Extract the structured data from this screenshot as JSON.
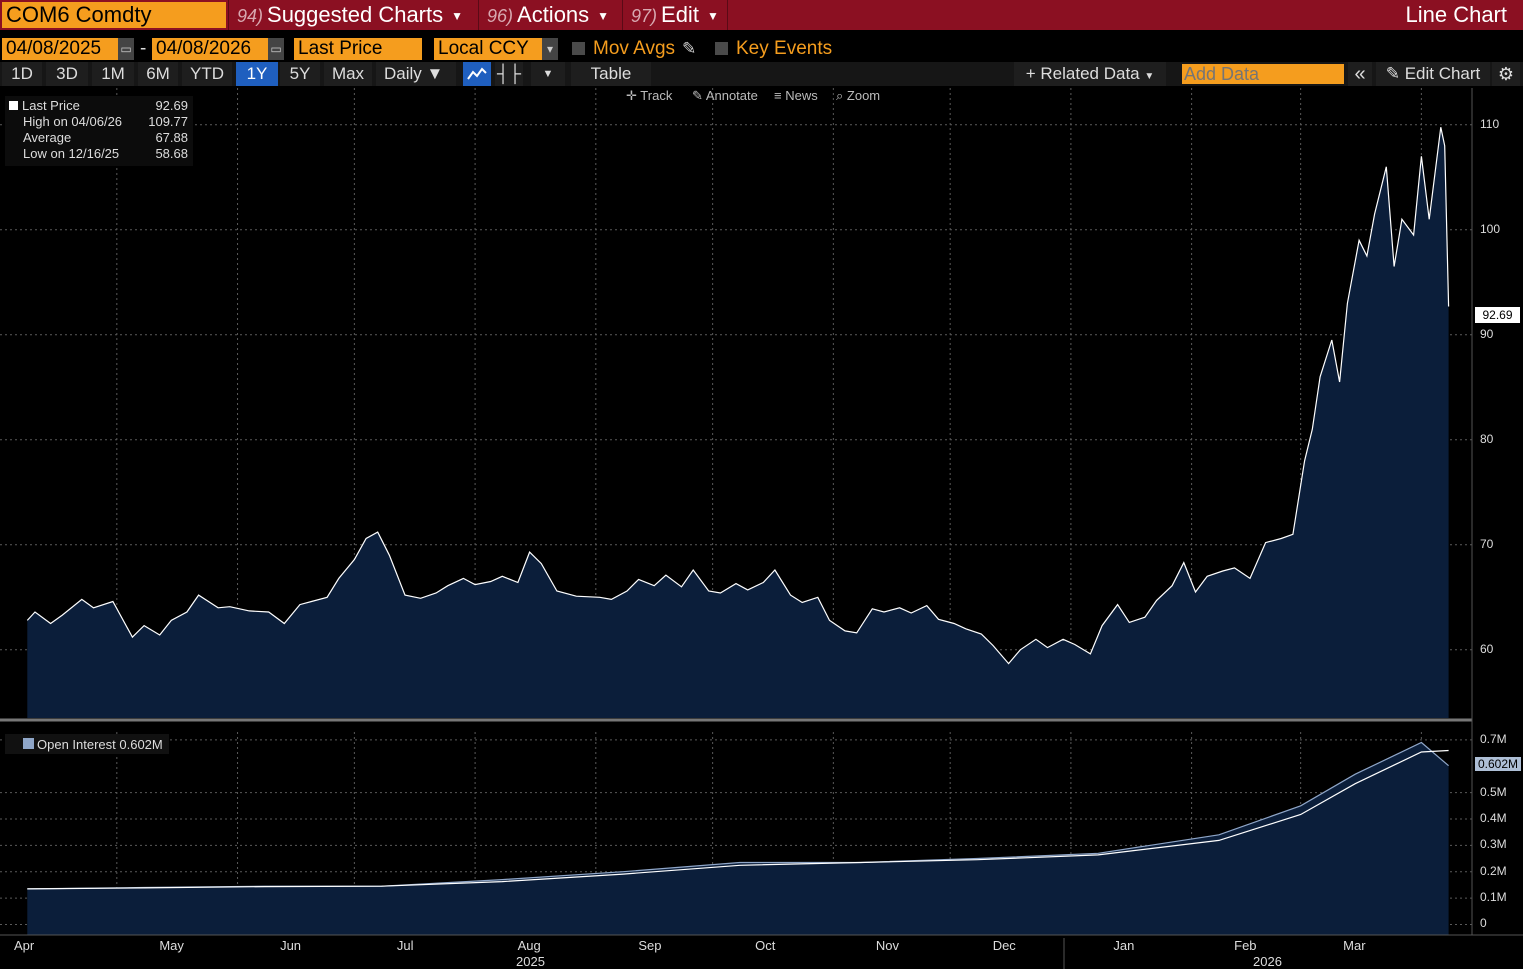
{
  "header": {
    "ticker": "COM6 Comdty",
    "menus": [
      {
        "num": "94)",
        "label": "Suggested Charts"
      },
      {
        "num": "96)",
        "label": "Actions"
      },
      {
        "num": "97)",
        "label": "Edit"
      }
    ],
    "chart_type": "Line Chart"
  },
  "controls": {
    "start_date": "04/08/2025",
    "end_date": "04/08/2026",
    "field": "Last Price",
    "currency": "Local CCY",
    "mov_avgs": "Mov Avgs",
    "key_events": "Key Events"
  },
  "toolbar": {
    "periods": [
      "1D",
      "3D",
      "1M",
      "6M",
      "YTD",
      "1Y",
      "5Y",
      "Max"
    ],
    "active_period": "1Y",
    "frequency": "Daily",
    "table": "Table",
    "related_data": "Related Data",
    "add_data_placeholder": "Add Data",
    "edit_chart": "Edit Chart"
  },
  "subtools": [
    "Track",
    "Annotate",
    "News",
    "Zoom"
  ],
  "legend": {
    "last_price_label": "Last Price",
    "last_price_value": "92.69",
    "high_label": "High on 04/06/26",
    "high_value": "109.77",
    "avg_label": "Average",
    "avg_value": "67.88",
    "low_label": "Low on 12/16/25",
    "low_value": "58.68"
  },
  "oi_legend": "Open Interest 0.602M",
  "tags": {
    "last_price": "92.69",
    "open_interest": "0.602M"
  },
  "colors": {
    "accent": "#f59d1e",
    "header": "#8b1022",
    "area_fill": "#0b1e3a",
    "line": "#ffffff"
  },
  "chart_data": [
    {
      "type": "area",
      "series": [
        {
          "name": "Last Price"
        }
      ],
      "x_labels": [
        "Apr",
        "May",
        "Jun",
        "Jul",
        "Aug",
        "Sep",
        "Oct",
        "Nov",
        "Dec",
        "Jan",
        "Feb",
        "Mar"
      ],
      "year_labels": [
        "2025",
        "2026"
      ],
      "y_ticks": [
        60,
        70,
        80,
        90,
        100,
        110
      ],
      "ylim": [
        53.5,
        113.5
      ],
      "grid": true,
      "points": [
        [
          "2025-04-08",
          62.8
        ],
        [
          "2025-04-10",
          63.6
        ],
        [
          "2025-04-14",
          62.5
        ],
        [
          "2025-04-17",
          63.3
        ],
        [
          "2025-04-22",
          64.8
        ],
        [
          "2025-04-25",
          64.0
        ],
        [
          "2025-04-30",
          64.6
        ],
        [
          "2025-05-05",
          61.2
        ],
        [
          "2025-05-08",
          62.3
        ],
        [
          "2025-05-12",
          61.4
        ],
        [
          "2025-05-15",
          62.8
        ],
        [
          "2025-05-19",
          63.6
        ],
        [
          "2025-05-22",
          65.2
        ],
        [
          "2025-05-27",
          64.0
        ],
        [
          "2025-05-30",
          64.1
        ],
        [
          "2025-06-04",
          63.7
        ],
        [
          "2025-06-09",
          63.6
        ],
        [
          "2025-06-13",
          62.5
        ],
        [
          "2025-06-17",
          64.3
        ],
        [
          "2025-06-20",
          64.6
        ],
        [
          "2025-06-24",
          65.0
        ],
        [
          "2025-06-27",
          66.8
        ],
        [
          "2025-07-01",
          68.6
        ],
        [
          "2025-07-04",
          70.6
        ],
        [
          "2025-07-07",
          71.2
        ],
        [
          "2025-07-10",
          69.0
        ],
        [
          "2025-07-14",
          65.2
        ],
        [
          "2025-07-18",
          64.9
        ],
        [
          "2025-07-22",
          65.4
        ],
        [
          "2025-07-25",
          66.1
        ],
        [
          "2025-07-29",
          66.8
        ],
        [
          "2025-08-01",
          66.2
        ],
        [
          "2025-08-05",
          66.5
        ],
        [
          "2025-08-08",
          67.0
        ],
        [
          "2025-08-12",
          66.4
        ],
        [
          "2025-08-15",
          69.3
        ],
        [
          "2025-08-18",
          68.2
        ],
        [
          "2025-08-22",
          65.6
        ],
        [
          "2025-08-27",
          65.1
        ],
        [
          "2025-09-02",
          65.0
        ],
        [
          "2025-09-05",
          64.8
        ],
        [
          "2025-09-09",
          65.6
        ],
        [
          "2025-09-12",
          66.7
        ],
        [
          "2025-09-16",
          66.1
        ],
        [
          "2025-09-19",
          67.1
        ],
        [
          "2025-09-23",
          66.0
        ],
        [
          "2025-09-26",
          67.6
        ],
        [
          "2025-09-30",
          65.6
        ],
        [
          "2025-10-03",
          65.4
        ],
        [
          "2025-10-07",
          66.3
        ],
        [
          "2025-10-10",
          65.7
        ],
        [
          "2025-10-14",
          66.4
        ],
        [
          "2025-10-17",
          67.6
        ],
        [
          "2025-10-21",
          65.2
        ],
        [
          "2025-10-24",
          64.5
        ],
        [
          "2025-10-28",
          65.0
        ],
        [
          "2025-10-31",
          62.8
        ],
        [
          "2025-11-04",
          61.8
        ],
        [
          "2025-11-07",
          61.6
        ],
        [
          "2025-11-11",
          63.9
        ],
        [
          "2025-11-14",
          63.6
        ],
        [
          "2025-11-18",
          64.0
        ],
        [
          "2025-11-21",
          63.5
        ],
        [
          "2025-11-25",
          64.2
        ],
        [
          "2025-11-28",
          62.9
        ],
        [
          "2025-12-02",
          62.5
        ],
        [
          "2025-12-05",
          62.0
        ],
        [
          "2025-12-09",
          61.5
        ],
        [
          "2025-12-12",
          60.4
        ],
        [
          "2025-12-16",
          58.68
        ],
        [
          "2025-12-19",
          60.0
        ],
        [
          "2025-12-23",
          61.0
        ],
        [
          "2025-12-26",
          60.2
        ],
        [
          "2025-12-30",
          61.0
        ],
        [
          "2026-01-02",
          60.5
        ],
        [
          "2026-01-06",
          59.6
        ],
        [
          "2026-01-09",
          62.3
        ],
        [
          "2026-01-13",
          64.3
        ],
        [
          "2026-01-16",
          62.6
        ],
        [
          "2026-01-20",
          63.1
        ],
        [
          "2026-01-23",
          64.7
        ],
        [
          "2026-01-27",
          66.1
        ],
        [
          "2026-01-30",
          68.3
        ],
        [
          "2026-02-02",
          65.5
        ],
        [
          "2026-02-05",
          67.0
        ],
        [
          "2026-02-09",
          67.5
        ],
        [
          "2026-02-12",
          67.8
        ],
        [
          "2026-02-16",
          66.8
        ],
        [
          "2026-02-20",
          70.2
        ],
        [
          "2026-02-24",
          70.6
        ],
        [
          "2026-02-27",
          71.0
        ],
        [
          "2026-03-02",
          78.0
        ],
        [
          "2026-03-04",
          81.0
        ],
        [
          "2026-03-06",
          86.0
        ],
        [
          "2026-03-09",
          89.5
        ],
        [
          "2026-03-11",
          85.5
        ],
        [
          "2026-03-13",
          93.0
        ],
        [
          "2026-03-16",
          99.0
        ],
        [
          "2026-03-18",
          97.5
        ],
        [
          "2026-03-20",
          101.5
        ],
        [
          "2026-03-23",
          106.0
        ],
        [
          "2026-03-25",
          96.5
        ],
        [
          "2026-03-27",
          101.0
        ],
        [
          "2026-03-30",
          99.5
        ],
        [
          "2026-04-01",
          107.0
        ],
        [
          "2026-04-03",
          101.0
        ],
        [
          "2026-04-06",
          109.77
        ],
        [
          "2026-04-07",
          108.0
        ],
        [
          "2026-04-08",
          92.69
        ]
      ]
    },
    {
      "type": "area",
      "series": [
        {
          "name": "Open Interest"
        }
      ],
      "y_ticks": [
        "0",
        "0.1M",
        "0.2M",
        "0.3M",
        "0.4M",
        "0.5M",
        "0.7M"
      ],
      "ylim": [
        -0.04,
        0.73
      ],
      "grid": true,
      "points": [
        [
          "2025-04-08",
          0.135
        ],
        [
          "2025-05-08",
          0.14
        ],
        [
          "2025-06-08",
          0.145
        ],
        [
          "2025-07-08",
          0.145
        ],
        [
          "2025-08-08",
          0.17
        ],
        [
          "2025-09-08",
          0.2
        ],
        [
          "2025-10-08",
          0.235
        ],
        [
          "2025-11-08",
          0.235
        ],
        [
          "2025-12-08",
          0.25
        ],
        [
          "2026-01-08",
          0.27
        ],
        [
          "2026-02-08",
          0.34
        ],
        [
          "2026-03-01",
          0.45
        ],
        [
          "2026-03-15",
          0.57
        ],
        [
          "2026-04-01",
          0.69
        ],
        [
          "2026-04-08",
          0.602
        ]
      ]
    }
  ]
}
